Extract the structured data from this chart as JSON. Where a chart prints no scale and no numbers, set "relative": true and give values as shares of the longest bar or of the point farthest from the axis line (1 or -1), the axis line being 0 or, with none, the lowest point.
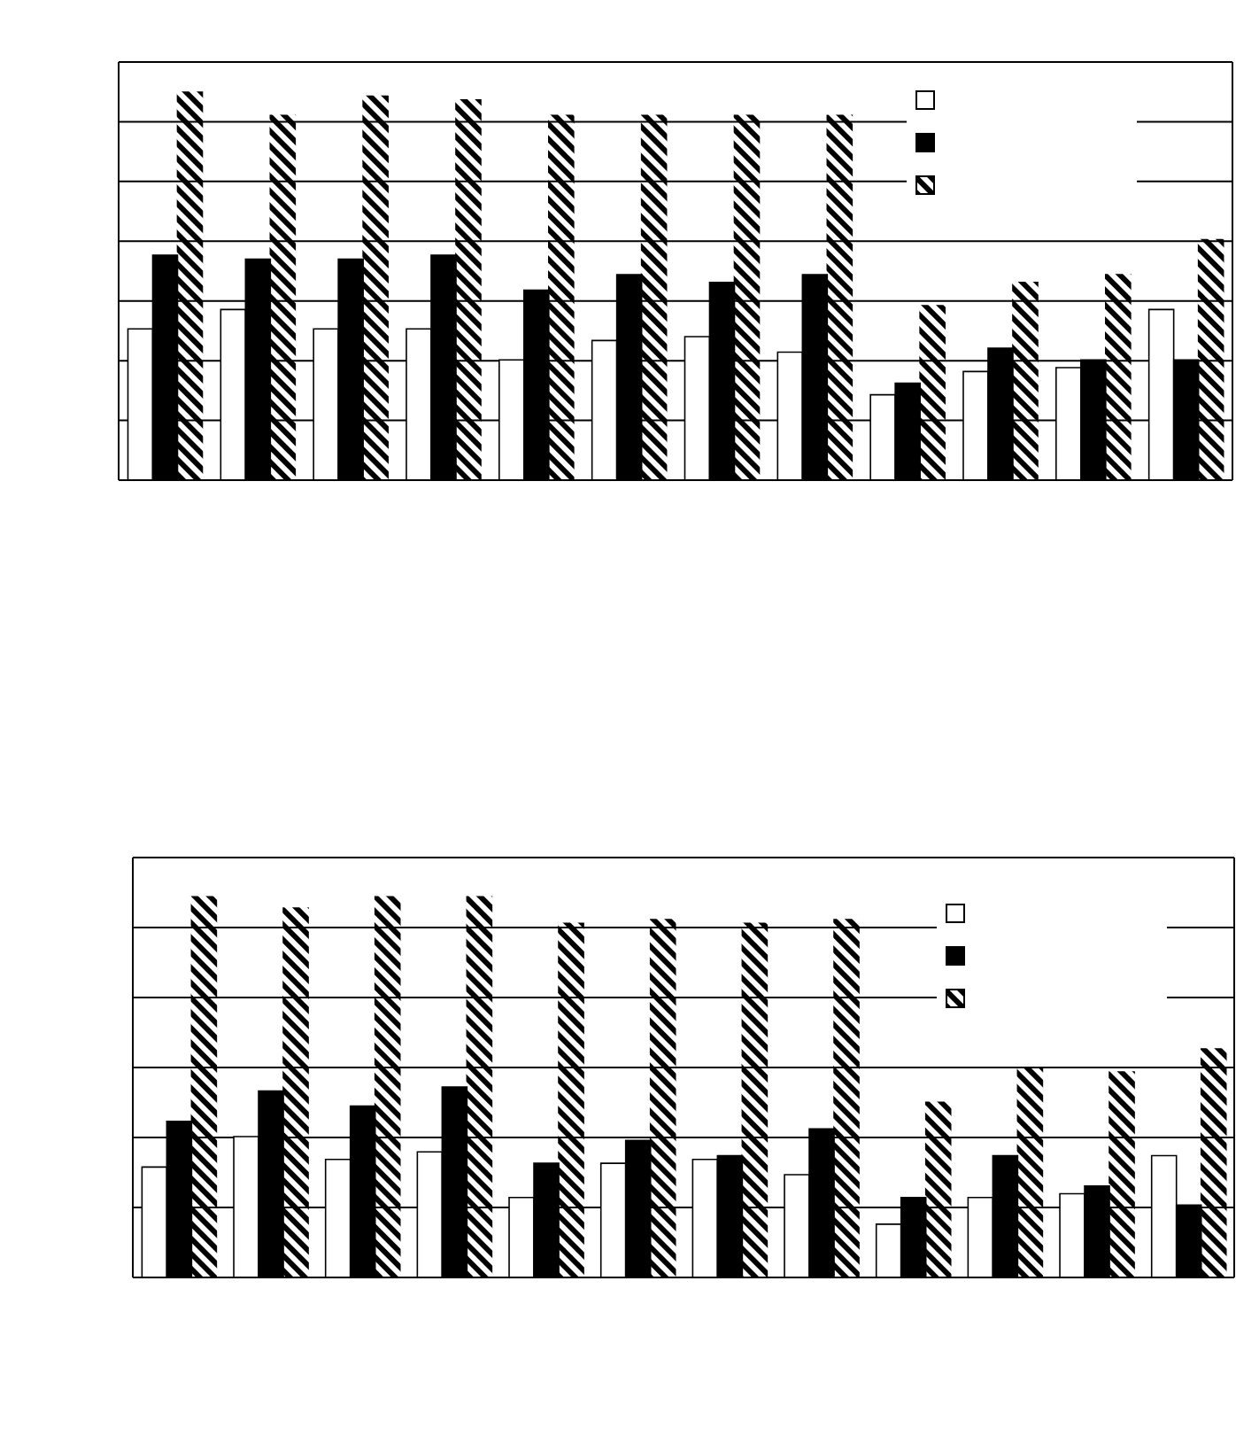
{
  "chart_data": [
    {
      "type": "bar",
      "relative": true,
      "categories": [
        null,
        null,
        null,
        null,
        null,
        null,
        null,
        null,
        null,
        null,
        null,
        null
      ],
      "series": [
        {
          "color": "#ffffff",
          "values": [
            0.39,
            0.44,
            0.39,
            0.39,
            0.31,
            0.36,
            0.37,
            0.33,
            0.22,
            0.28,
            0.29,
            0.44
          ]
        },
        {
          "color": "#000000",
          "values": [
            0.58,
            0.57,
            0.57,
            0.58,
            0.49,
            0.53,
            0.51,
            0.53,
            0.25,
            0.34,
            0.31,
            0.31
          ]
        },
        {
          "color": "#000000",
          "values": [
            1,
            0.94,
            0.99,
            0.98,
            0.94,
            0.94,
            0.94,
            0.94,
            0.45,
            0.51,
            0.53,
            0.62
          ]
        }
      ],
      "grid": "y"
    },
    {
      "type": "bar",
      "relative": true,
      "categories": [
        null,
        null,
        null,
        null,
        null,
        null,
        null,
        null,
        null,
        null,
        null,
        null
      ],
      "series": [
        {
          "color": "#ffffff",
          "values": [
            0.29,
            0.37,
            0.31,
            0.33,
            0.21,
            0.3,
            0.31,
            0.27,
            0.14,
            0.21,
            0.22,
            0.32
          ]
        },
        {
          "color": "#000000",
          "values": [
            0.41,
            0.49,
            0.45,
            0.5,
            0.3,
            0.36,
            0.32,
            0.39,
            0.21,
            0.32,
            0.24,
            0.19
          ]
        },
        {
          "color": "#000000",
          "values": [
            1,
            0.97,
            1,
            1,
            0.93,
            0.94,
            0.93,
            0.94,
            0.46,
            0.55,
            0.54,
            0.6
          ]
        }
      ],
      "grid": "y"
    }
  ]
}
